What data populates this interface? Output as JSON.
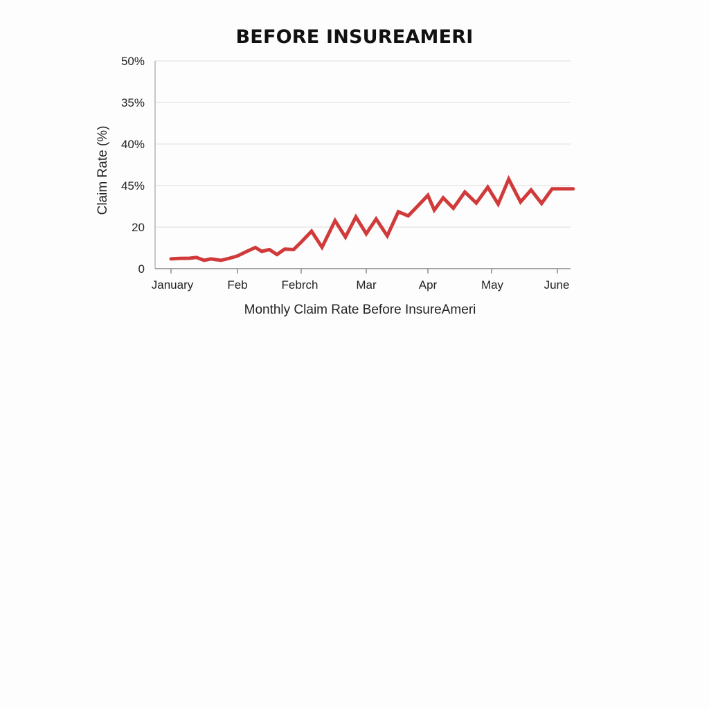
{
  "chart_data": {
    "type": "line",
    "title": "BEFORE INSUREAMERI",
    "xlabel": "Monthly Claim Rate Before InsureAmeri",
    "ylabel": "Claim Rate (%)",
    "x_tick_labels": [
      "January",
      "Feb",
      "Febrch",
      "Mar",
      "Apr",
      "May",
      "June"
    ],
    "y_tick_labels": [
      "0",
      "20",
      "45%",
      "40%",
      "35%",
      "50%"
    ],
    "grid": true,
    "legend": "none",
    "series": [
      {
        "color": "#d13a3a",
        "x": [
          0.0,
          0.12,
          0.28,
          0.38,
          0.5,
          0.6,
          0.75,
          0.88,
          1.0,
          1.12,
          1.28,
          1.38,
          1.5,
          1.62,
          1.74,
          1.88,
          2.0,
          2.16,
          2.32,
          2.52,
          2.68,
          2.84,
          3.0,
          3.16,
          3.34,
          3.52,
          3.68,
          3.82,
          4.0,
          4.1,
          4.24,
          4.4,
          4.58,
          4.76,
          4.94,
          5.1,
          5.26,
          5.44,
          5.6,
          5.76,
          5.92,
          6.08,
          6.24
        ],
        "y": [
          4.7,
          4.9,
          5.0,
          5.4,
          4.0,
          4.7,
          4.0,
          5.0,
          6.1,
          7.9,
          10.2,
          8.3,
          9.2,
          6.8,
          9.4,
          9.2,
          12.8,
          18.0,
          10.3,
          23.1,
          15.2,
          24.9,
          16.8,
          23.9,
          15.8,
          27.4,
          25.4,
          29.7,
          35.3,
          28.2,
          34.1,
          29.1,
          36.9,
          31.6,
          39.2,
          31.1,
          43.1,
          32.1,
          37.9,
          31.4,
          38.4,
          38.4,
          38.4
        ]
      }
    ]
  }
}
